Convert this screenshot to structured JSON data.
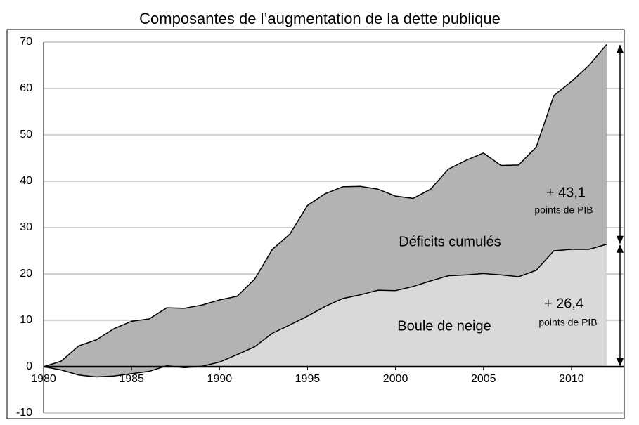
{
  "chart_data": {
    "type": "stacked_area",
    "title": "Composantes de l’augmentation de la dette publique",
    "x": [
      1980,
      1981,
      1982,
      1983,
      1984,
      1985,
      1986,
      1987,
      1988,
      1989,
      1990,
      1991,
      1992,
      1993,
      1994,
      1995,
      1996,
      1997,
      1998,
      1999,
      2000,
      2001,
      2002,
      2003,
      2004,
      2005,
      2006,
      2007,
      2008,
      2009,
      2010,
      2011,
      2012
    ],
    "series": [
      {
        "name": "Boule de neige",
        "color": "#d9d9d9",
        "values": [
          0,
          -0.7,
          -1.8,
          -2.2,
          -2.0,
          -1.5,
          -1.0,
          0.2,
          -0.2,
          0.1,
          1.0,
          2.6,
          4.3,
          7.2,
          9.0,
          10.9,
          13.0,
          14.7,
          15.5,
          16.5,
          16.4,
          17.3,
          18.5,
          19.6,
          19.8,
          20.1,
          19.8,
          19.4,
          20.8,
          25.0,
          25.3,
          25.3,
          26.4
        ]
      },
      {
        "name": "Déficits cumulés",
        "color": "#b3b3b3",
        "values": [
          0,
          1.9,
          6.3,
          8.0,
          10.2,
          11.3,
          11.3,
          12.5,
          12.8,
          13.2,
          13.4,
          12.6,
          14.6,
          18.1,
          19.6,
          23.9,
          24.3,
          24.1,
          23.4,
          21.8,
          20.4,
          19.0,
          19.8,
          23.0,
          24.7,
          26.0,
          23.6,
          24.1,
          26.6,
          33.5,
          36.2,
          39.7,
          43.1
        ]
      }
    ],
    "annotations": [
      "+ 43,1",
      "points  de PIB",
      "+ 26,4",
      "points de PIB"
    ],
    "xlim": [
      1980,
      2013
    ],
    "xticks": [
      1980,
      1985,
      1990,
      1995,
      2000,
      2005,
      2010
    ],
    "ylim": [
      -10,
      70
    ],
    "yticks": [
      -10,
      0,
      10,
      20,
      30,
      40,
      50,
      60,
      70
    ],
    "grid": true
  }
}
